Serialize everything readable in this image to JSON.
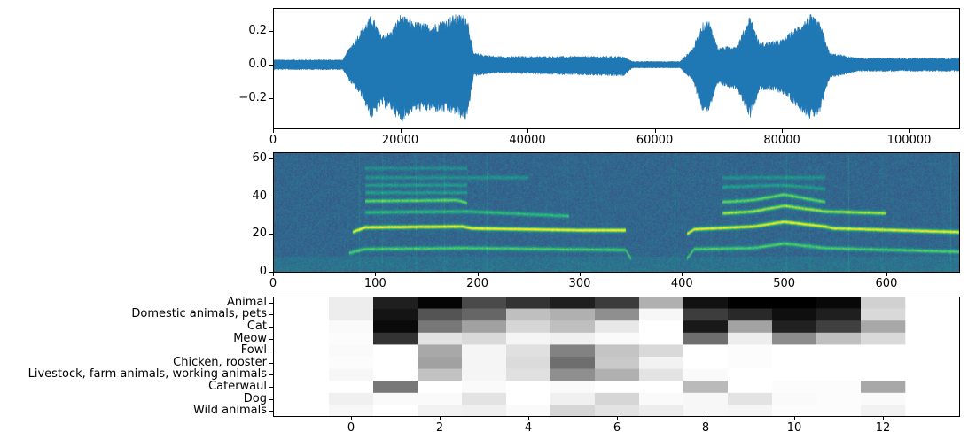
{
  "chart_data": [
    {
      "type": "line",
      "subtype": "waveform",
      "color": "#1f77b4",
      "xlim": [
        0,
        108000
      ],
      "ylim": [
        -0.384,
        0.337
      ],
      "xticks": [
        0,
        20000,
        40000,
        60000,
        80000,
        100000
      ],
      "xtick_labels": [
        "0",
        "20000",
        "40000",
        "60000",
        "80000",
        "100000"
      ],
      "yticks": [
        -0.2,
        0.0,
        0.2
      ],
      "ytick_labels": [
        "−0.2",
        "0.0",
        "0.2"
      ],
      "envelope": {
        "x": [
          0,
          11000,
          12000,
          14000,
          15500,
          17000,
          18500,
          20000,
          22000,
          25000,
          28500,
          30500,
          31500,
          35000,
          55000,
          56500,
          64000,
          66000,
          67500,
          68500,
          70000,
          73000,
          75000,
          76500,
          80000,
          84500,
          86000,
          87500,
          92000,
          108000
        ],
        "upper": [
          0.03,
          0.03,
          0.1,
          0.22,
          0.3,
          0.18,
          0.2,
          0.3,
          0.26,
          0.24,
          0.3,
          0.3,
          0.07,
          0.05,
          0.05,
          0.02,
          0.02,
          0.1,
          0.25,
          0.27,
          0.1,
          0.12,
          0.3,
          0.13,
          0.15,
          0.3,
          0.25,
          0.07,
          0.04,
          0.04
        ],
        "lower": [
          -0.03,
          -0.03,
          -0.1,
          -0.2,
          -0.33,
          -0.25,
          -0.27,
          -0.35,
          -0.28,
          -0.28,
          -0.3,
          -0.34,
          -0.07,
          -0.05,
          -0.07,
          -0.02,
          -0.02,
          -0.1,
          -0.28,
          -0.28,
          -0.12,
          -0.15,
          -0.32,
          -0.15,
          -0.17,
          -0.33,
          -0.3,
          -0.08,
          -0.04,
          -0.04
        ]
      }
    },
    {
      "type": "heatmap",
      "subtype": "spectrogram",
      "colormap": "viridis",
      "xlim": [
        0,
        672
      ],
      "ylim": [
        -0.5,
        63.5
      ],
      "xticks": [
        0,
        100,
        200,
        300,
        400,
        500,
        600
      ],
      "xtick_labels": [
        "0",
        "100",
        "200",
        "300",
        "400",
        "500",
        "600"
      ],
      "yticks": [
        0,
        20,
        40,
        60
      ],
      "ytick_labels": [
        "0",
        "20",
        "40",
        "60"
      ],
      "harmonic_tracks": [
        {
          "intensity": 0.55,
          "points": [
            [
              75,
              10
            ],
            [
              90,
              12
            ],
            [
              190,
              12.5
            ],
            [
              345,
              11.5
            ],
            [
              350,
              7
            ]
          ]
        },
        {
          "intensity": 0.95,
          "points": [
            [
              78,
              21
            ],
            [
              90,
              23.5
            ],
            [
              185,
              24
            ],
            [
              195,
              23
            ],
            [
              300,
              22
            ],
            [
              345,
              22
            ]
          ]
        },
        {
          "intensity": 0.45,
          "points": [
            [
              90,
              31.5
            ],
            [
              190,
              32
            ],
            [
              290,
              29.5
            ]
          ]
        },
        {
          "intensity": 0.6,
          "points": [
            [
              90,
              37.5
            ],
            [
              180,
              38
            ],
            [
              190,
              36.5
            ]
          ]
        },
        {
          "intensity": 0.3,
          "points": [
            [
              90,
              42
            ],
            [
              190,
              42
            ]
          ]
        },
        {
          "intensity": 0.28,
          "points": [
            [
              90,
              46
            ],
            [
              190,
              46
            ]
          ]
        },
        {
          "intensity": 0.25,
          "points": [
            [
              90,
              50
            ],
            [
              250,
              50
            ]
          ]
        },
        {
          "intensity": 0.22,
          "points": [
            [
              90,
              55
            ],
            [
              190,
              55
            ]
          ]
        },
        {
          "intensity": 0.55,
          "points": [
            [
              405,
              7
            ],
            [
              412,
              12
            ],
            [
              470,
              12.5
            ],
            [
              500,
              15
            ],
            [
              540,
              12.5
            ],
            [
              672,
              10.5
            ]
          ]
        },
        {
          "intensity": 0.9,
          "points": [
            [
              405,
              20
            ],
            [
              412,
              22.5
            ],
            [
              470,
              24
            ],
            [
              500,
              26.5
            ],
            [
              540,
              24
            ],
            [
              548,
              23
            ],
            [
              672,
              21
            ]
          ]
        },
        {
          "intensity": 0.75,
          "points": [
            [
              440,
              31
            ],
            [
              470,
              32
            ],
            [
              500,
              35
            ],
            [
              540,
              32
            ],
            [
              600,
              31
            ]
          ]
        },
        {
          "intensity": 0.6,
          "points": [
            [
              440,
              37
            ],
            [
              470,
              38
            ],
            [
              500,
              41
            ],
            [
              540,
              37
            ]
          ]
        },
        {
          "intensity": 0.3,
          "points": [
            [
              440,
              45
            ],
            [
              500,
              46
            ],
            [
              540,
              44
            ]
          ]
        },
        {
          "intensity": 0.25,
          "points": [
            [
              440,
              50
            ],
            [
              540,
              50
            ]
          ]
        }
      ]
    },
    {
      "type": "heatmap",
      "subtype": "class_scores",
      "colormap": "gray_r",
      "xlim": [
        -1.76,
        13.74
      ],
      "xticks": [
        0,
        2,
        4,
        6,
        8,
        10,
        12
      ],
      "xtick_labels": [
        "0",
        "2",
        "4",
        "6",
        "8",
        "10",
        "12"
      ],
      "row_labels": [
        "Animal",
        "Domestic animals, pets",
        "Cat",
        "Meow",
        "Fowl",
        "Chicken, rooster",
        "Livestock, farm animals, working animals",
        "Caterwaul",
        "Dog",
        "Wild animals"
      ],
      "values": [
        [
          0.07,
          0.88,
          0.98,
          0.71,
          0.8,
          0.88,
          0.77,
          0.31,
          0.93,
          1.0,
          1.0,
          0.97,
          0.18
        ],
        [
          0.07,
          0.92,
          0.67,
          0.6,
          0.25,
          0.31,
          0.44,
          0.03,
          0.76,
          0.84,
          0.94,
          0.88,
          0.15
        ],
        [
          0.02,
          0.96,
          0.53,
          0.37,
          0.16,
          0.25,
          0.09,
          0.0,
          0.9,
          0.36,
          0.87,
          0.75,
          0.34
        ],
        [
          0.01,
          0.8,
          0.11,
          0.15,
          0.04,
          0.06,
          0.02,
          0.0,
          0.57,
          0.07,
          0.45,
          0.25,
          0.15
        ],
        [
          0.02,
          0.0,
          0.34,
          0.04,
          0.12,
          0.49,
          0.23,
          0.15,
          0.0,
          0.01,
          0.0,
          0.0,
          0.0
        ],
        [
          0.01,
          0.0,
          0.37,
          0.04,
          0.14,
          0.57,
          0.21,
          0.05,
          0.0,
          0.01,
          0.0,
          0.0,
          0.0
        ],
        [
          0.03,
          0.0,
          0.24,
          0.04,
          0.12,
          0.44,
          0.31,
          0.11,
          0.02,
          0.0,
          0.0,
          0.0,
          0.0
        ],
        [
          0.0,
          0.53,
          0.0,
          0.02,
          0.0,
          0.02,
          0.0,
          0.0,
          0.27,
          0.0,
          0.01,
          0.01,
          0.34
        ],
        [
          0.06,
          0.02,
          0.02,
          0.11,
          0.0,
          0.06,
          0.16,
          0.02,
          0.03,
          0.11,
          0.02,
          0.01,
          0.02
        ],
        [
          0.03,
          0.0,
          0.05,
          0.06,
          0.02,
          0.16,
          0.11,
          0.07,
          0.03,
          0.04,
          0.01,
          0.01,
          0.05
        ]
      ]
    }
  ]
}
